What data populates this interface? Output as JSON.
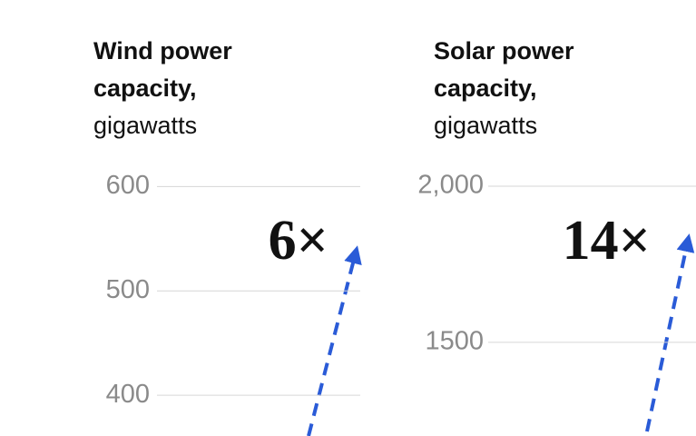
{
  "chart_data": [
    {
      "type": "line",
      "title": "Wind power capacity,",
      "subtitle": "gigawatts",
      "annotation": "6×",
      "ylim": [
        361,
        609
      ],
      "yticks": [
        400,
        500,
        600
      ],
      "grid": true
    },
    {
      "type": "line",
      "title": "Solar power capacity,",
      "subtitle": "gigawatts",
      "annotation": "14×",
      "ylim": [
        1200,
        2029
      ],
      "yticks": [
        1500,
        {
          "value": 2000,
          "label": "2,000"
        }
      ],
      "grid": true
    }
  ]
}
